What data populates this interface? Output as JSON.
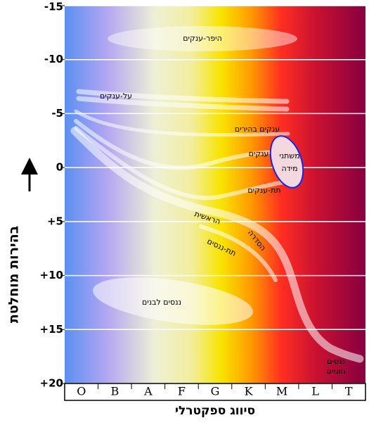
{
  "chart_data": {
    "type": "hr",
    "y_label": "בהירות מוחלטת",
    "x_label": "סיווג ספקטרלי",
    "categories": [
      "O",
      "B",
      "A",
      "F",
      "G",
      "K",
      "M",
      "L",
      "T"
    ],
    "ylim": [
      -15,
      20
    ],
    "yticks": [
      -15,
      -10,
      -5,
      0,
      {
        "value": 5,
        "label": "+5"
      },
      {
        "value": 10,
        "label": "+10"
      },
      {
        "value": 15,
        "label": "+15"
      },
      {
        "value": 20,
        "label": "+20"
      }
    ],
    "grid": true,
    "annotations": [
      "היפר-ענקים",
      "על-ענקים",
      "ענקים בהירים",
      "ענקים",
      "משתני",
      "מידה",
      "תת-ענקים",
      "הראשית",
      "הסדרה",
      "תת-ננסים",
      "ננסים לבנים",
      "ננסים",
      "חומים"
    ]
  }
}
